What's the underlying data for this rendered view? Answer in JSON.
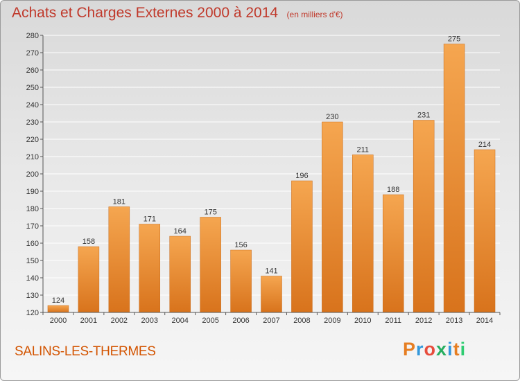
{
  "title": "Achats et Charges Externes 2000 à 2014",
  "unit_note": "(en milliers d'€)",
  "place_name": "SALINS-LES-THERMES",
  "logo": {
    "letters": [
      "P",
      "r",
      "o",
      "x",
      "i",
      "t",
      "i"
    ],
    "colors": [
      "#e67e22",
      "#3498db",
      "#e74c3c",
      "#27ae60",
      "#3498db",
      "#e67e22",
      "#2ecc71"
    ]
  },
  "colors": {
    "bar_top": "#f5a650",
    "bar_bottom": "#d8731c",
    "grid": "#ffffff",
    "axis": "#555555",
    "title": "#c0392b"
  },
  "chart_data": {
    "type": "bar",
    "title": "Achats et Charges Externes 2000 à 2014",
    "xlabel": "",
    "ylabel": "",
    "categories": [
      "2000",
      "2001",
      "2002",
      "2003",
      "2004",
      "2005",
      "2006",
      "2007",
      "2008",
      "2009",
      "2010",
      "2011",
      "2012",
      "2013",
      "2014"
    ],
    "values": [
      124,
      158,
      181,
      171,
      164,
      175,
      156,
      141,
      196,
      230,
      211,
      188,
      231,
      275,
      214
    ],
    "ylim": [
      120,
      280
    ],
    "yticks": [
      120,
      130,
      140,
      150,
      160,
      170,
      180,
      190,
      200,
      210,
      220,
      230,
      240,
      250,
      260,
      270,
      280
    ],
    "grid": true
  }
}
